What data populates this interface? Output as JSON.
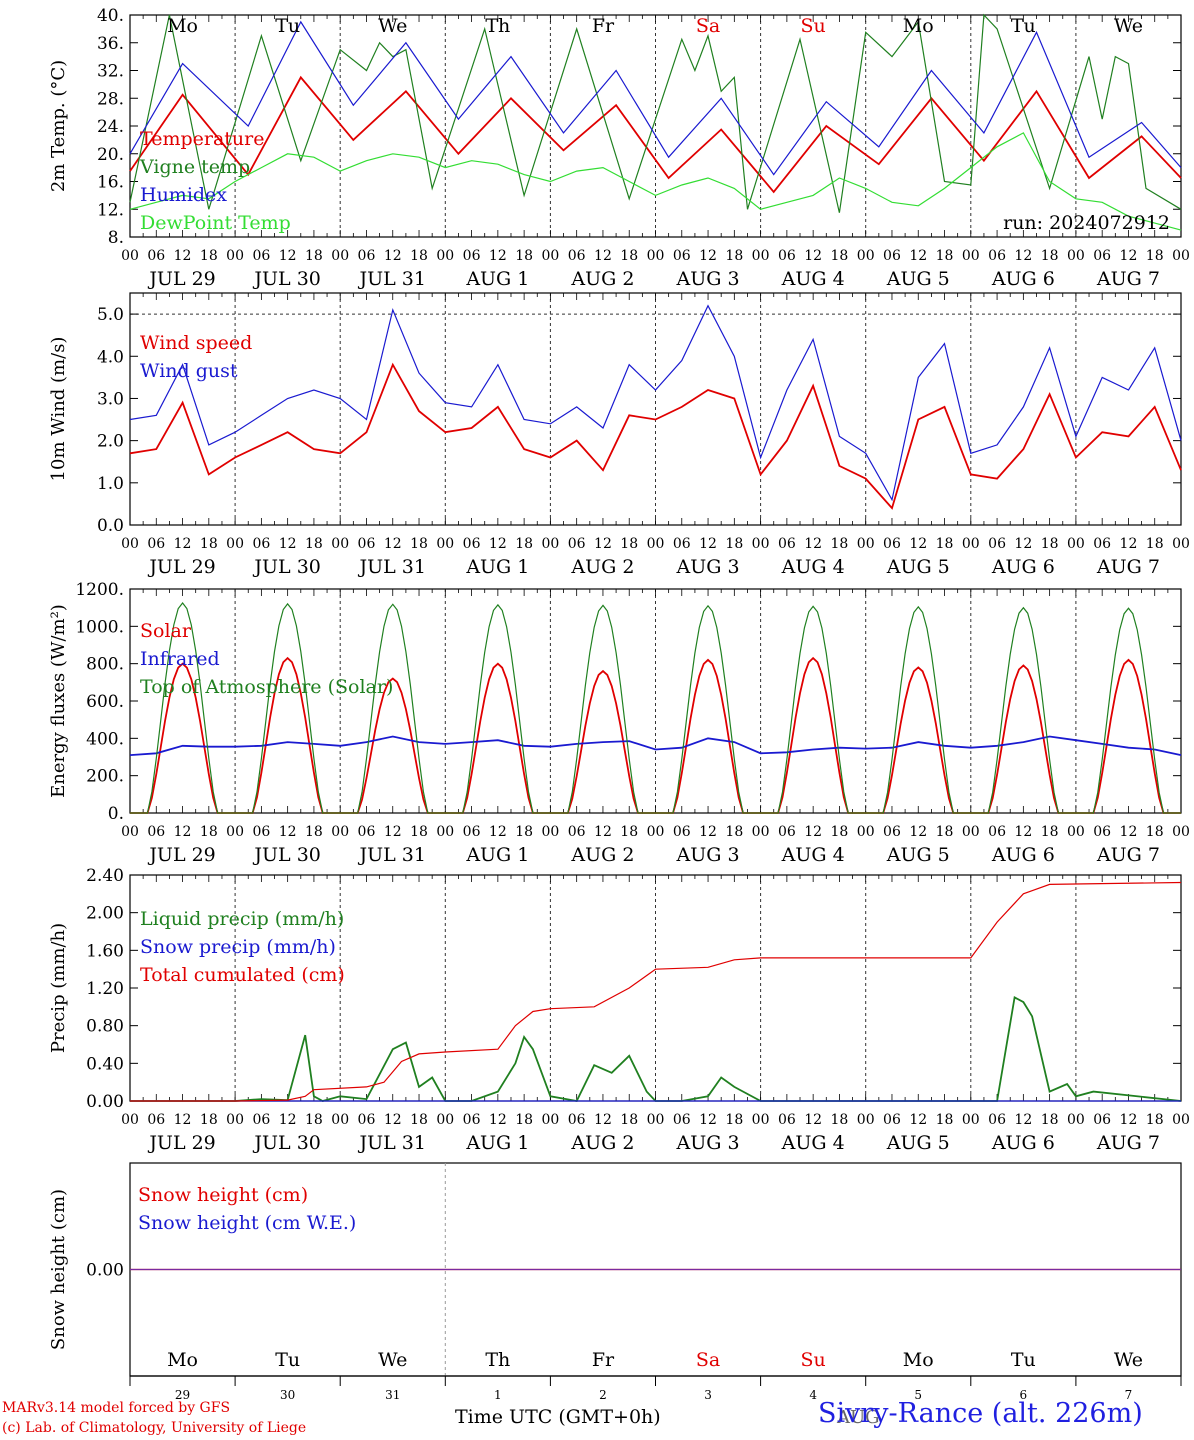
{
  "chart_data": [
    {
      "type": "line",
      "ylabel": "2m Temp. (°C)",
      "ylim": [
        8,
        40
      ],
      "y_tick_labels": [
        "8.",
        "12.",
        "16.",
        "20.",
        "24.",
        "28.",
        "32.",
        "36.",
        "40."
      ],
      "run_label": "run: 2024072912",
      "series": [
        {
          "name": "Temperature",
          "color": "#e00000",
          "x": [
            0,
            12,
            27,
            39,
            51,
            63,
            75,
            87,
            99,
            111,
            123,
            135,
            147,
            159,
            171,
            183,
            195,
            207,
            219,
            231,
            240
          ],
          "y": [
            17.5,
            28.5,
            17,
            31,
            22,
            29,
            20,
            28,
            20.5,
            27,
            16.5,
            23.5,
            14.5,
            24,
            18.5,
            28,
            19,
            29,
            16.5,
            22.5,
            16.5
          ]
        },
        {
          "name": "Vigne temp",
          "color": "#208020",
          "x": [
            0,
            9,
            18,
            30,
            39,
            48,
            54,
            57,
            60,
            63,
            69,
            81,
            90,
            102,
            114,
            126,
            129,
            132,
            135,
            138,
            141,
            153,
            162,
            168,
            174,
            180,
            186,
            192,
            195,
            198,
            210,
            219,
            222,
            225,
            228,
            232,
            240
          ],
          "y": [
            13,
            40,
            12,
            37,
            19,
            35,
            32,
            36,
            34,
            35,
            15,
            38,
            14,
            38,
            13.5,
            36.5,
            32,
            37,
            29,
            31,
            12,
            36.5,
            11.5,
            37.5,
            34,
            39,
            16,
            15.5,
            40,
            38,
            15,
            34,
            25,
            34,
            33,
            15,
            12
          ]
        },
        {
          "name": "Humidex",
          "color": "#1a1ad0",
          "x": [
            0,
            12,
            27,
            39,
            51,
            63,
            75,
            87,
            99,
            111,
            123,
            135,
            147,
            159,
            171,
            183,
            195,
            207,
            219,
            231,
            240
          ],
          "y": [
            20,
            33,
            24,
            39,
            27,
            36,
            25,
            34,
            23,
            32,
            19.5,
            28,
            17,
            27.5,
            21,
            32,
            23,
            37.5,
            19.5,
            24.5,
            18
          ]
        },
        {
          "name": "DewPoint Temp",
          "color": "#33dd33",
          "x": [
            0,
            6,
            12,
            18,
            24,
            30,
            36,
            42,
            48,
            54,
            60,
            66,
            72,
            78,
            84,
            90,
            96,
            102,
            108,
            114,
            120,
            126,
            132,
            138,
            144,
            150,
            156,
            162,
            168,
            174,
            180,
            186,
            192,
            198,
            204,
            210,
            216,
            222,
            228,
            234,
            240
          ],
          "y": [
            12,
            13,
            14,
            13.5,
            16,
            18,
            20,
            19.5,
            17.5,
            19,
            20,
            19.5,
            18,
            19,
            18.5,
            17,
            16,
            17.5,
            18,
            16,
            14,
            15.5,
            16.5,
            15,
            12,
            13,
            14,
            16.5,
            15,
            13,
            12.5,
            15,
            18,
            21,
            23,
            16,
            13.5,
            13,
            11,
            10,
            9
          ]
        }
      ]
    },
    {
      "type": "line",
      "ylabel": "10m Wind (m/s)",
      "ylim": [
        0,
        5.5
      ],
      "y_tick_labels": [
        "0.0",
        "1.0",
        "2.0",
        "3.0",
        "4.0",
        "5.0"
      ],
      "series": [
        {
          "name": "Wind speed",
          "color": "#e00000",
          "x": [
            0,
            6,
            12,
            18,
            24,
            30,
            36,
            42,
            48,
            54,
            60,
            66,
            72,
            78,
            84,
            90,
            96,
            102,
            108,
            114,
            120,
            126,
            132,
            138,
            144,
            150,
            156,
            162,
            168,
            174,
            180,
            186,
            192,
            198,
            204,
            210,
            216,
            222,
            228,
            234,
            240
          ],
          "y": [
            1.7,
            1.8,
            2.9,
            1.2,
            1.6,
            1.9,
            2.2,
            1.8,
            1.7,
            2.2,
            3.8,
            2.7,
            2.2,
            2.3,
            2.8,
            1.8,
            1.6,
            2,
            1.3,
            2.6,
            2.5,
            2.8,
            3.2,
            3,
            1.2,
            2,
            3.3,
            1.4,
            1.1,
            0.4,
            2.5,
            2.8,
            1.2,
            1.1,
            1.8,
            3.1,
            1.6,
            2.2,
            2.1,
            2.8,
            1.3
          ]
        },
        {
          "name": "Wind gust",
          "color": "#1a1ad0",
          "x": [
            0,
            6,
            12,
            18,
            24,
            30,
            36,
            42,
            48,
            54,
            60,
            66,
            72,
            78,
            84,
            90,
            96,
            102,
            108,
            114,
            120,
            126,
            132,
            138,
            144,
            150,
            156,
            162,
            168,
            174,
            180,
            186,
            192,
            198,
            204,
            210,
            216,
            222,
            228,
            234,
            240
          ],
          "y": [
            2.5,
            2.6,
            3.8,
            1.9,
            2.2,
            2.6,
            3,
            3.2,
            3,
            2.5,
            5.1,
            3.6,
            2.9,
            2.8,
            3.8,
            2.5,
            2.4,
            2.8,
            2.3,
            3.8,
            3.2,
            3.9,
            5.2,
            4,
            1.6,
            3.2,
            4.4,
            2.1,
            1.7,
            0.6,
            3.5,
            4.3,
            1.7,
            1.9,
            2.8,
            4.2,
            2.1,
            3.5,
            3.2,
            4.2,
            2
          ]
        }
      ]
    },
    {
      "type": "line",
      "ylabel": "Energy fluxes (W/m²)",
      "ylim": [
        0,
        1200
      ],
      "y_tick_labels": [
        "0.",
        "200.",
        "400.",
        "600.",
        "800.",
        "1000.",
        "1200."
      ],
      "series": [
        {
          "name": "Solar",
          "color": "#e00000",
          "peaks": [
            800,
            830,
            720,
            800,
            760,
            820,
            830,
            780,
            790,
            820
          ],
          "x": [
            0,
            12,
            24,
            36,
            48,
            60,
            72,
            84,
            96,
            108,
            120,
            132,
            144,
            156,
            168,
            180,
            192,
            204,
            216,
            228,
            240
          ],
          "y": [
            0,
            800,
            0,
            830,
            0,
            720,
            0,
            800,
            0,
            760,
            0,
            820,
            0,
            830,
            0,
            780,
            0,
            790,
            0,
            820,
            0
          ]
        },
        {
          "name": "Infrared",
          "color": "#1a1ad0",
          "x": [
            0,
            6,
            12,
            18,
            24,
            30,
            36,
            42,
            48,
            54,
            60,
            66,
            72,
            78,
            84,
            90,
            96,
            102,
            108,
            114,
            120,
            126,
            132,
            138,
            144,
            150,
            156,
            162,
            168,
            174,
            180,
            186,
            192,
            198,
            204,
            210,
            216,
            222,
            228,
            234,
            240
          ],
          "y": [
            310,
            320,
            360,
            355,
            355,
            360,
            380,
            370,
            360,
            380,
            410,
            380,
            370,
            380,
            390,
            360,
            355,
            370,
            380,
            385,
            340,
            350,
            400,
            380,
            320,
            325,
            340,
            350,
            345,
            350,
            380,
            360,
            350,
            360,
            380,
            410,
            390,
            370,
            350,
            340,
            310
          ]
        },
        {
          "name": "Top of Atmosphere (Solar)",
          "color": "#208020",
          "x": [
            0,
            12,
            24,
            36,
            48,
            60,
            72,
            84,
            96,
            108,
            120,
            132,
            144,
            156,
            168,
            180,
            192,
            204,
            216,
            228,
            240
          ],
          "y": [
            0,
            1125,
            0,
            1120,
            0,
            1118,
            0,
            1115,
            0,
            1112,
            0,
            1110,
            0,
            1107,
            0,
            1104,
            0,
            1100,
            0,
            1097,
            0
          ]
        }
      ]
    },
    {
      "type": "line",
      "ylabel": "Precip (mm/h)",
      "ylim": [
        0,
        2.4
      ],
      "y_tick_labels": [
        "0.00",
        "0.40",
        "0.80",
        "1.20",
        "1.60",
        "2.00",
        "2.40"
      ],
      "series": [
        {
          "name": "Liquid precip (mm/h)",
          "color": "#208020",
          "x": [
            0,
            24,
            30,
            36,
            40,
            42,
            44,
            48,
            54,
            60,
            63,
            66,
            69,
            72,
            78,
            84,
            88,
            90,
            92,
            96,
            102,
            106,
            110,
            114,
            118,
            120,
            126,
            132,
            135,
            138,
            144,
            192,
            198,
            202,
            204,
            206,
            210,
            214,
            216,
            220,
            240
          ],
          "y": [
            0,
            0,
            0.02,
            0.01,
            0.7,
            0.05,
            0,
            0.05,
            0.02,
            0.55,
            0.62,
            0.15,
            0.25,
            0,
            0,
            0.1,
            0.4,
            0.68,
            0.55,
            0.05,
            0,
            0.38,
            0.3,
            0.48,
            0.1,
            0,
            0,
            0.05,
            0.25,
            0.15,
            0,
            0,
            0,
            1.1,
            1.05,
            0.9,
            0.1,
            0.18,
            0.05,
            0.1,
            0
          ]
        },
        {
          "name": "Snow precip (mm/h)",
          "color": "#1a1ad0",
          "x": [
            0,
            240
          ],
          "y": [
            0,
            0
          ]
        },
        {
          "name": "Total cumulated (cm)",
          "color": "#e00000",
          "x": [
            0,
            24,
            36,
            40,
            42,
            54,
            58,
            62,
            66,
            72,
            84,
            88,
            92,
            96,
            106,
            114,
            120,
            132,
            138,
            144,
            168,
            192,
            198,
            204,
            210,
            240
          ],
          "y": [
            0,
            0,
            0.01,
            0.05,
            0.12,
            0.15,
            0.2,
            0.42,
            0.5,
            0.52,
            0.55,
            0.8,
            0.95,
            0.98,
            1.0,
            1.2,
            1.4,
            1.42,
            1.5,
            1.52,
            1.52,
            1.52,
            1.9,
            2.2,
            2.3,
            2.32
          ]
        }
      ]
    },
    {
      "type": "line",
      "ylabel": "Snow height (cm)",
      "ylim": [
        -1,
        1
      ],
      "y_tick_labels": [
        "0.00"
      ],
      "series": [
        {
          "name": "Snow height (cm)",
          "color": "#e00000",
          "x": [
            0,
            240
          ],
          "y": [
            0,
            0
          ]
        },
        {
          "name": "Snow height (cm W.E.)",
          "color": "#1a1ad0",
          "x": [
            0,
            240
          ],
          "y": [
            0,
            0
          ]
        }
      ]
    }
  ],
  "x_axis": {
    "hour_tick_labels": [
      "00",
      "06",
      "12",
      "18"
    ],
    "end_label": "00",
    "date_labels": [
      "JUL 29",
      "JUL 30",
      "JUL 31",
      "AUG  1",
      "AUG  2",
      "AUG  3",
      "AUG  4",
      "AUG  5",
      "AUG  6",
      "AUG  7"
    ],
    "weekday_labels": [
      "Mo",
      "Tu",
      "We",
      "Th",
      "Fr",
      "Sa",
      "Su",
      "Mo",
      "Tu",
      "We"
    ],
    "weekend_flags": [
      false,
      false,
      false,
      false,
      false,
      true,
      true,
      false,
      false,
      false
    ],
    "day_numbers": [
      "29",
      "30",
      "31",
      "1",
      "2",
      "3",
      "4",
      "5",
      "6",
      "7"
    ],
    "month_label": "AUG",
    "weekend_color": "#e00000",
    "xlabel": "Time UTC (GMT+0h)"
  },
  "footer": {
    "model_credit": "MARv3.14 model forced by GFS",
    "lab_credit": "(c) Lab. of Climatology, University of Liege",
    "station": "Sivry-Rance (alt. 226m)"
  }
}
